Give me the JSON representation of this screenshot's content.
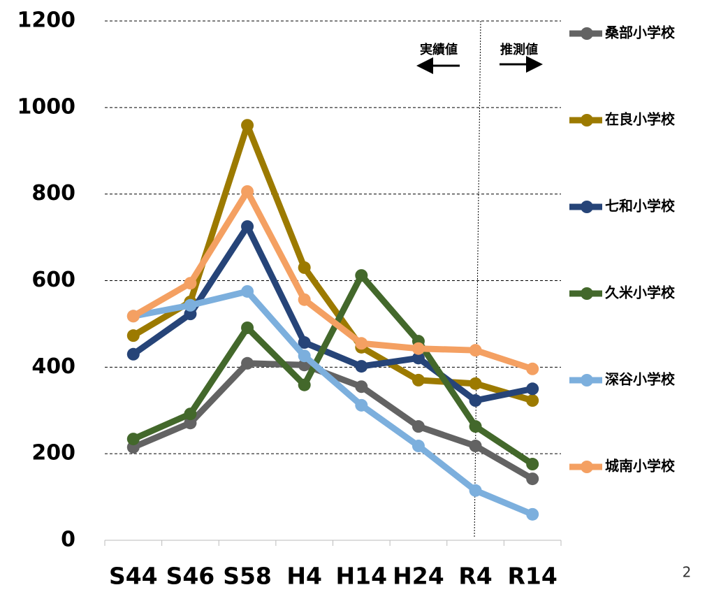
{
  "chart_data": {
    "type": "line",
    "categories": [
      "S44",
      "S46",
      "S58",
      "H4",
      "H14",
      "H24",
      "R4",
      "R14"
    ],
    "series": [
      {
        "name": "桑部小学校",
        "color": "#636363",
        "values": [
          215,
          271,
          409,
          405,
          355,
          263,
          218,
          142
        ]
      },
      {
        "name": "在良小学校",
        "color": "#9c7a00",
        "values": [
          473,
          551,
          959,
          630,
          446,
          370,
          362,
          323
        ]
      },
      {
        "name": "七和小学校",
        "color": "#264478",
        "values": [
          430,
          523,
          725,
          457,
          402,
          421,
          323,
          350
        ]
      },
      {
        "name": "久米小学校",
        "color": "#43682b",
        "values": [
          234,
          292,
          491,
          359,
          612,
          460,
          263,
          176
        ]
      },
      {
        "name": "深谷小学校",
        "color": "#7cafdd",
        "values": [
          518,
          543,
          575,
          426,
          312,
          218,
          115,
          60
        ]
      },
      {
        "name": "城南小学校",
        "color": "#f4a062",
        "values": [
          518,
          594,
          806,
          556,
          455,
          443,
          439,
          396
        ]
      }
    ],
    "ylim": [
      0,
      1200
    ],
    "yticks": [
      0,
      200,
      400,
      600,
      800,
      1000,
      1200
    ],
    "grid": true,
    "annotations": [
      "実績値",
      "推測値"
    ],
    "page_number": "2"
  }
}
